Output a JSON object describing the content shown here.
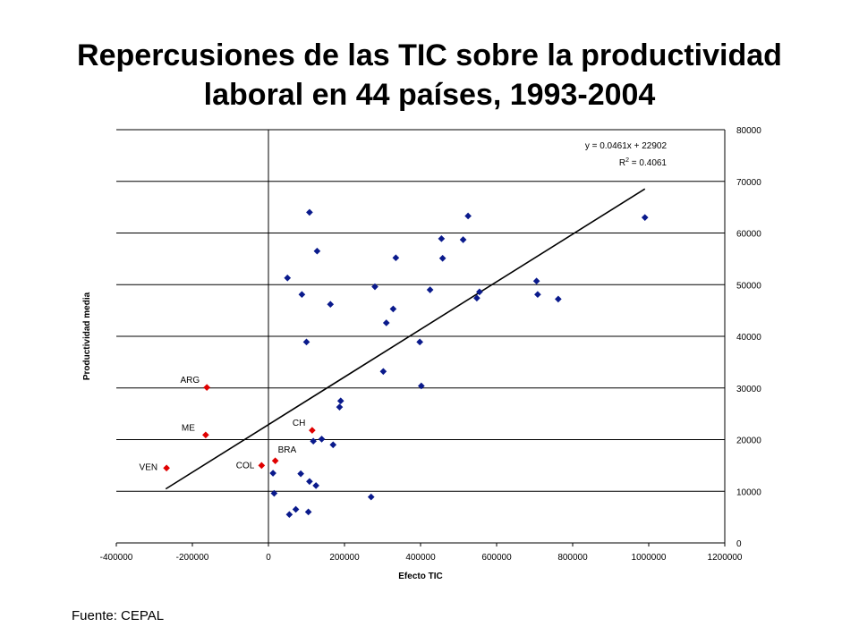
{
  "title_line1": "Repercusiones de las TIC sobre la productividad",
  "title_line2": "laboral en 44 países, 1993-2004",
  "source": "Fuente: CEPAL",
  "colors": {
    "regular": "#0a1a8c",
    "highlight": "#e00000",
    "grid": "#000000"
  },
  "chart_data": {
    "type": "scatter",
    "xlabel": "Efecto TIC",
    "ylabel": "Productividad media",
    "xlim": [
      -400000,
      1200000
    ],
    "ylim": [
      0,
      80000
    ],
    "x_ticks": [
      "-400000",
      "-200000",
      "0",
      "200000",
      "400000",
      "600000",
      "800000",
      "1000000",
      "1200000"
    ],
    "y_ticks": [
      "0",
      "10000",
      "20000",
      "30000",
      "40000",
      "50000",
      "60000",
      "70000",
      "80000"
    ],
    "grid": "horizontal",
    "trendline": {
      "slope": 0.0461,
      "intercept": 22902,
      "x_range": [
        -270000,
        990000
      ]
    },
    "equation_line1": "y = 0.0461x + 22902",
    "equation_r2_label": "R",
    "equation_r2_sup": "2",
    "equation_r2_value": " = 0.4061",
    "series": [
      {
        "name": "",
        "points": [
          [
            108000,
            64000
          ],
          [
            525000,
            63300
          ],
          [
            990000,
            63000
          ],
          [
            455000,
            58900
          ],
          [
            512000,
            58700
          ],
          [
            128000,
            56500
          ],
          [
            335000,
            55200
          ],
          [
            458000,
            55100
          ],
          [
            50000,
            51300
          ],
          [
            705000,
            50700
          ],
          [
            280000,
            49600
          ],
          [
            425000,
            49000
          ],
          [
            555000,
            48600
          ],
          [
            88000,
            48100
          ],
          [
            708000,
            48100
          ],
          [
            548000,
            47400
          ],
          [
            762000,
            47200
          ],
          [
            163000,
            46200
          ],
          [
            328000,
            45300
          ],
          [
            310000,
            42600
          ],
          [
            100000,
            38900
          ],
          [
            398000,
            38900
          ],
          [
            302000,
            33200
          ],
          [
            402000,
            30400
          ],
          [
            190000,
            27500
          ],
          [
            187000,
            26300
          ],
          [
            140000,
            20100
          ],
          [
            118000,
            19700
          ],
          [
            170000,
            19000
          ],
          [
            12000,
            13500
          ],
          [
            85000,
            13400
          ],
          [
            108000,
            11900
          ],
          [
            125000,
            11100
          ],
          [
            15000,
            9600
          ],
          [
            270000,
            8900
          ],
          [
            72000,
            6500
          ],
          [
            55000,
            5500
          ],
          [
            105000,
            6000
          ]
        ]
      },
      {
        "name": "",
        "points": [
          {
            "label": "ARG",
            "x": -162000,
            "y": 30100
          },
          {
            "label": "ME",
            "x": -165000,
            "y": 20900
          },
          {
            "label": "VEN",
            "x": -268000,
            "y": 14500
          },
          {
            "label": "COL",
            "x": -18000,
            "y": 15000
          },
          {
            "label": "BRA",
            "x": 18000,
            "y": 15900
          },
          {
            "label": "CH",
            "x": 115000,
            "y": 21800
          }
        ]
      }
    ]
  }
}
